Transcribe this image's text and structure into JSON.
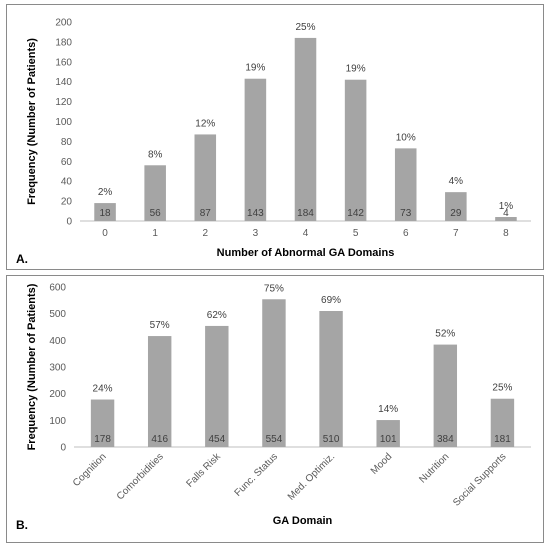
{
  "chart_data": [
    {
      "type": "bar",
      "panel_label": "A.",
      "xlabel": "Number of Abnormal GA Domains",
      "ylabel": "Frequency (Number of Patients)",
      "ylim": [
        0,
        200
      ],
      "yticks": [
        0,
        20,
        40,
        60,
        80,
        100,
        120,
        140,
        160,
        180,
        200
      ],
      "categories": [
        "0",
        "1",
        "2",
        "3",
        "4",
        "5",
        "6",
        "7",
        "8"
      ],
      "values": [
        18,
        56,
        87,
        143,
        184,
        142,
        73,
        29,
        4
      ],
      "percent_labels": [
        "2%",
        "8%",
        "12%",
        "19%",
        "25%",
        "19%",
        "10%",
        "4%",
        "1%"
      ],
      "grid": false,
      "colors": {
        "bar": "#a5a5a5"
      }
    },
    {
      "type": "bar",
      "panel_label": "B.",
      "xlabel": "GA Domain",
      "ylabel": "Frequency (Number of Patients)",
      "ylim": [
        0,
        600
      ],
      "yticks": [
        0,
        100,
        200,
        300,
        400,
        500,
        600
      ],
      "categories": [
        "Cognition",
        "Comorbidities",
        "Falls Risk",
        "Func. Status",
        "Med. Optimiz.",
        "Mood",
        "Nutrition",
        "Social Supports"
      ],
      "values": [
        178,
        416,
        454,
        554,
        510,
        101,
        384,
        181
      ],
      "percent_labels": [
        "24%",
        "57%",
        "62%",
        "75%",
        "69%",
        "14%",
        "52%",
        "25%"
      ],
      "grid": false,
      "colors": {
        "bar": "#a5a5a5"
      }
    }
  ]
}
